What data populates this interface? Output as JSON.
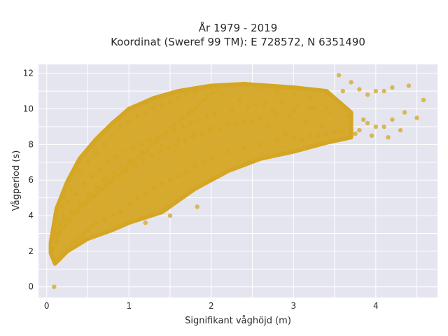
{
  "chart_data": {
    "type": "scatter",
    "title_line1": "År 1979 - 2019",
    "title_line2": "Koordinat (Sweref 99 TM): E 728572, N 6351490",
    "xlabel": "Signifikant våghöjd (m)",
    "ylabel": "Vågperiod (s)",
    "xlim": [
      -0.1,
      4.75
    ],
    "ylim": [
      -0.6,
      12.5
    ],
    "xticks": [
      0,
      1,
      2,
      3,
      4
    ],
    "yticks": [
      0,
      2,
      4,
      6,
      8,
      10,
      12
    ],
    "grid": true,
    "legend": "none",
    "marker_color": "#D4A623",
    "background_color": "#E5E5EF",
    "series": [
      {
        "x": [
          0.09,
          0.06,
          0.07,
          0.08,
          0.1,
          0.12,
          0.15,
          0.1,
          0.2,
          0.25,
          0.3,
          0.18,
          0.22,
          0.35,
          0.4,
          0.45,
          0.5,
          0.55,
          0.6,
          0.7,
          0.8,
          0.9,
          1.0,
          1.1,
          1.2,
          1.3,
          1.4,
          1.5,
          1.6,
          1.7,
          1.8,
          1.9,
          2.0,
          2.2,
          2.4,
          2.6,
          2.8,
          3.0,
          3.2,
          3.4,
          3.6,
          3.8,
          4.0,
          4.2,
          4.35,
          4.5,
          4.58,
          0.3,
          0.4,
          0.5,
          0.6,
          0.7,
          0.8,
          0.9,
          1.0,
          1.1,
          1.2,
          1.3,
          1.4,
          1.5,
          1.6,
          1.7,
          1.8,
          2.0,
          2.2,
          2.4,
          2.6,
          2.8,
          3.0,
          3.2,
          3.4,
          3.6,
          3.8,
          4.0,
          4.2,
          4.4,
          0.1,
          0.15,
          0.2,
          0.25,
          0.35,
          0.45,
          0.55,
          0.65,
          0.75,
          0.85,
          0.95,
          1.05,
          1.15,
          1.25,
          1.35,
          1.45,
          1.55,
          1.65,
          1.75,
          1.85,
          1.95,
          2.05,
          2.25,
          2.45,
          2.65,
          2.85,
          3.05,
          3.25,
          3.45,
          3.65,
          3.85,
          0.2,
          0.3,
          0.4,
          0.5,
          0.6,
          0.7,
          0.8,
          0.9,
          1.0,
          1.2,
          1.4,
          1.6,
          1.8,
          2.0,
          2.2,
          2.4,
          2.6,
          2.8,
          3.0,
          3.2,
          3.4,
          3.6,
          3.7,
          3.9,
          4.1,
          4.3,
          0.12,
          0.18,
          0.28,
          0.38,
          0.48,
          0.58,
          0.68,
          0.78,
          0.88,
          0.98,
          1.08,
          1.18,
          1.28,
          1.38,
          1.48,
          1.58,
          1.68,
          1.78,
          1.88,
          1.98,
          2.1,
          2.3,
          2.5,
          2.7,
          2.9,
          3.1,
          3.3,
          3.5,
          0.08,
          0.1,
          0.14,
          0.16,
          0.22,
          0.26,
          0.32,
          0.36,
          0.42,
          0.46,
          0.52,
          0.56,
          0.62,
          0.66,
          0.72,
          0.76,
          0.82,
          0.86,
          0.92,
          0.96,
          1.02,
          1.06,
          1.12,
          1.16,
          1.22,
          1.26,
          1.32,
          1.36,
          1.42,
          1.46,
          1.52,
          1.56,
          1.62,
          1.66,
          1.72,
          1.76,
          1.82,
          1.86,
          1.92,
          1.96,
          2.02,
          2.08,
          2.15,
          2.35,
          2.55,
          2.75,
          2.95,
          3.15,
          3.35,
          3.55,
          3.75,
          3.95,
          4.15,
          1.83,
          1.5,
          1.2,
          3.55,
          3.7,
          3.9,
          4.1
        ],
        "y": [
          0.0,
          1.9,
          2.1,
          1.6,
          1.4,
          2.5,
          1.6,
          3.3,
          1.8,
          2.1,
          2.4,
          4.5,
          5.0,
          2.6,
          2.8,
          3.0,
          3.2,
          3.4,
          3.6,
          3.8,
          4.0,
          4.2,
          4.6,
          5.0,
          5.2,
          5.5,
          5.8,
          6.0,
          6.2,
          6.5,
          6.8,
          7.0,
          7.2,
          7.6,
          7.8,
          8.0,
          8.2,
          8.4,
          8.5,
          8.6,
          8.7,
          8.8,
          9.0,
          9.4,
          9.8,
          9.5,
          10.5,
          5.5,
          6.5,
          7.0,
          7.5,
          8.0,
          8.5,
          9.0,
          9.3,
          9.6,
          9.8,
          10.0,
          10.2,
          10.4,
          10.6,
          10.8,
          11.0,
          11.2,
          11.3,
          11.4,
          11.2,
          11.0,
          10.8,
          10.6,
          10.9,
          11.0,
          11.1,
          11.0,
          11.2,
          11.3,
          3.0,
          3.5,
          4.0,
          4.8,
          5.2,
          5.8,
          6.2,
          6.6,
          7.0,
          7.3,
          7.6,
          7.8,
          8.0,
          8.2,
          8.4,
          8.6,
          8.8,
          9.0,
          9.2,
          9.4,
          9.6,
          9.7,
          9.9,
          10.1,
          10.3,
          10.4,
          10.2,
          10.0,
          9.8,
          9.6,
          9.4,
          3.7,
          4.2,
          4.7,
          5.2,
          5.6,
          6.0,
          6.4,
          6.8,
          7.1,
          7.5,
          7.9,
          8.3,
          8.6,
          8.9,
          9.1,
          9.3,
          9.5,
          9.7,
          9.9,
          10.0,
          10.1,
          10.2,
          9.6,
          9.2,
          9.0,
          8.8,
          2.8,
          3.2,
          3.8,
          4.3,
          4.7,
          5.1,
          5.5,
          5.9,
          6.2,
          6.5,
          6.8,
          7.1,
          7.4,
          7.6,
          7.8,
          8.0,
          8.2,
          8.4,
          8.6,
          8.8,
          8.9,
          9.1,
          9.3,
          9.0,
          8.6,
          8.3,
          8.5,
          8.7,
          2.2,
          2.6,
          2.9,
          3.1,
          3.4,
          3.7,
          4.0,
          4.2,
          4.5,
          4.7,
          4.9,
          5.1,
          5.3,
          5.5,
          5.7,
          5.9,
          6.1,
          6.3,
          6.5,
          6.7,
          6.9,
          7.1,
          7.3,
          7.5,
          7.7,
          7.9,
          8.1,
          8.3,
          8.5,
          8.7,
          8.9,
          9.1,
          9.3,
          9.5,
          9.7,
          9.9,
          10.1,
          10.3,
          10.5,
          10.7,
          10.9,
          11.1,
          10.8,
          10.5,
          10.2,
          9.9,
          9.6,
          9.3,
          9.0,
          8.8,
          8.6,
          8.5,
          8.4,
          4.5,
          4.0,
          3.6,
          11.9,
          11.5,
          10.8,
          11.0
        ]
      }
    ]
  }
}
